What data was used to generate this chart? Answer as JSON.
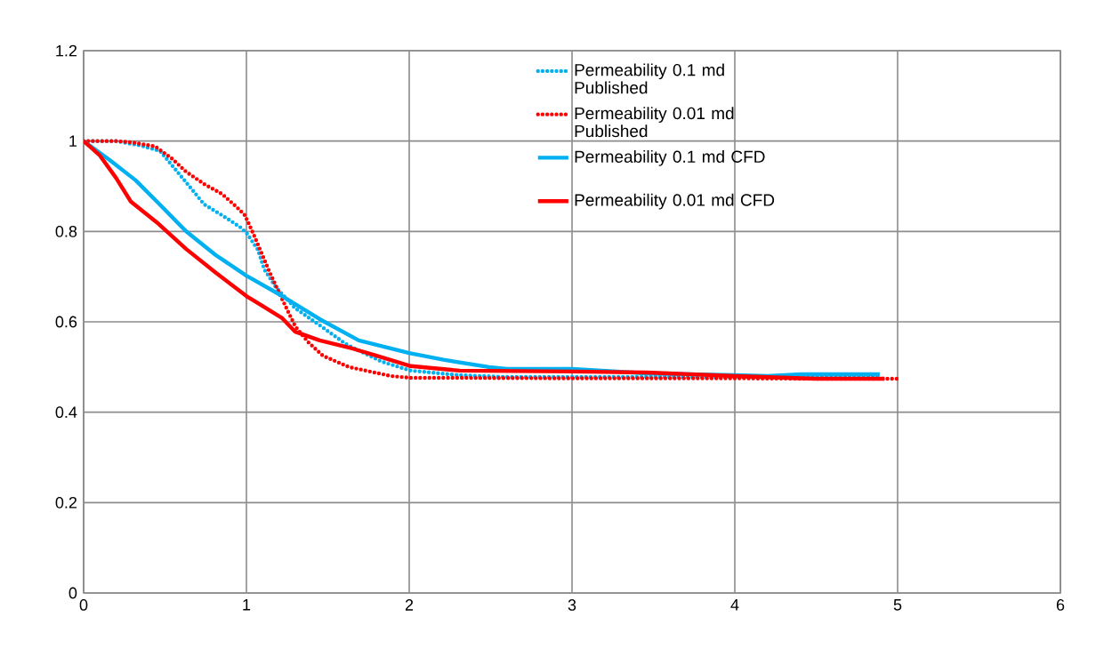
{
  "chart_data": {
    "type": "line",
    "xlim": [
      0,
      6
    ],
    "ylim": [
      0,
      1.2
    ],
    "xticks": [
      0,
      1,
      2,
      3,
      4,
      5,
      6
    ],
    "yticks": [
      0,
      0.2,
      0.4,
      0.6,
      0.8,
      1,
      1.2
    ],
    "grid": true,
    "legend": "top",
    "marker": "none",
    "series": [
      {
        "name": "Permeability 0.1 md Published",
        "color": "#00b0f0",
        "line_style": "dotted",
        "x": [
          0,
          0.2,
          0.35,
          0.47,
          0.62,
          0.74,
          0.85,
          0.96,
          1.0,
          1.07,
          1.11,
          1.18,
          1.3,
          1.46,
          1.61,
          1.83,
          2.01,
          2.31,
          2.6,
          3.0,
          3.5,
          4.0,
          4.5,
          4.9
        ],
        "values": [
          1,
          1,
          0.99,
          0.978,
          0.913,
          0.86,
          0.836,
          0.81,
          0.797,
          0.76,
          0.716,
          0.677,
          0.63,
          0.59,
          0.551,
          0.512,
          0.492,
          0.482,
          0.478,
          0.478,
          0.478,
          0.478,
          0.478,
          0.478
        ]
      },
      {
        "name": "Permeability 0.01 md Published",
        "color": "#ff0000",
        "line_style": "dotted",
        "x": [
          0,
          0.2,
          0.3,
          0.44,
          0.54,
          0.63,
          0.74,
          0.85,
          0.94,
          0.99,
          1.04,
          1.09,
          1.14,
          1.21,
          1.3,
          1.38,
          1.47,
          1.63,
          1.89,
          2.01,
          2.31,
          3.0,
          3.5,
          4.0,
          4.5,
          5.02
        ],
        "values": [
          1,
          1,
          0.997,
          0.988,
          0.962,
          0.932,
          0.905,
          0.883,
          0.854,
          0.836,
          0.797,
          0.755,
          0.712,
          0.657,
          0.59,
          0.555,
          0.525,
          0.5,
          0.48,
          0.476,
          0.476,
          0.475,
          0.475,
          0.475,
          0.474,
          0.474
        ]
      },
      {
        "name": "Permeability 0.1 md CFD",
        "color": "#00b0f0",
        "line_style": "solid",
        "x": [
          0,
          0.16,
          0.32,
          0.45,
          0.63,
          0.81,
          1.0,
          1.22,
          1.45,
          1.69,
          2.0,
          2.21,
          2.49,
          2.6,
          3.0,
          3.46,
          4.0,
          4.2,
          4.41,
          4.89
        ],
        "values": [
          1,
          0.958,
          0.913,
          0.866,
          0.8,
          0.748,
          0.702,
          0.657,
          0.606,
          0.559,
          0.531,
          0.516,
          0.5,
          0.496,
          0.496,
          0.486,
          0.482,
          0.48,
          0.484,
          0.484
        ]
      },
      {
        "name": "Permeability 0.01 md CFD",
        "color": "#ff0000",
        "line_style": "solid",
        "x": [
          0,
          0.1,
          0.2,
          0.29,
          0.45,
          0.63,
          0.81,
          1.0,
          1.09,
          1.22,
          1.3,
          1.45,
          1.65,
          1.8,
          2.01,
          2.31,
          3.0,
          3.46,
          4.0,
          4.5,
          4.92
        ],
        "values": [
          1,
          0.968,
          0.918,
          0.866,
          0.82,
          0.761,
          0.709,
          0.657,
          0.637,
          0.608,
          0.578,
          0.559,
          0.541,
          0.525,
          0.502,
          0.492,
          0.49,
          0.488,
          0.48,
          0.474,
          0.474
        ]
      }
    ]
  }
}
